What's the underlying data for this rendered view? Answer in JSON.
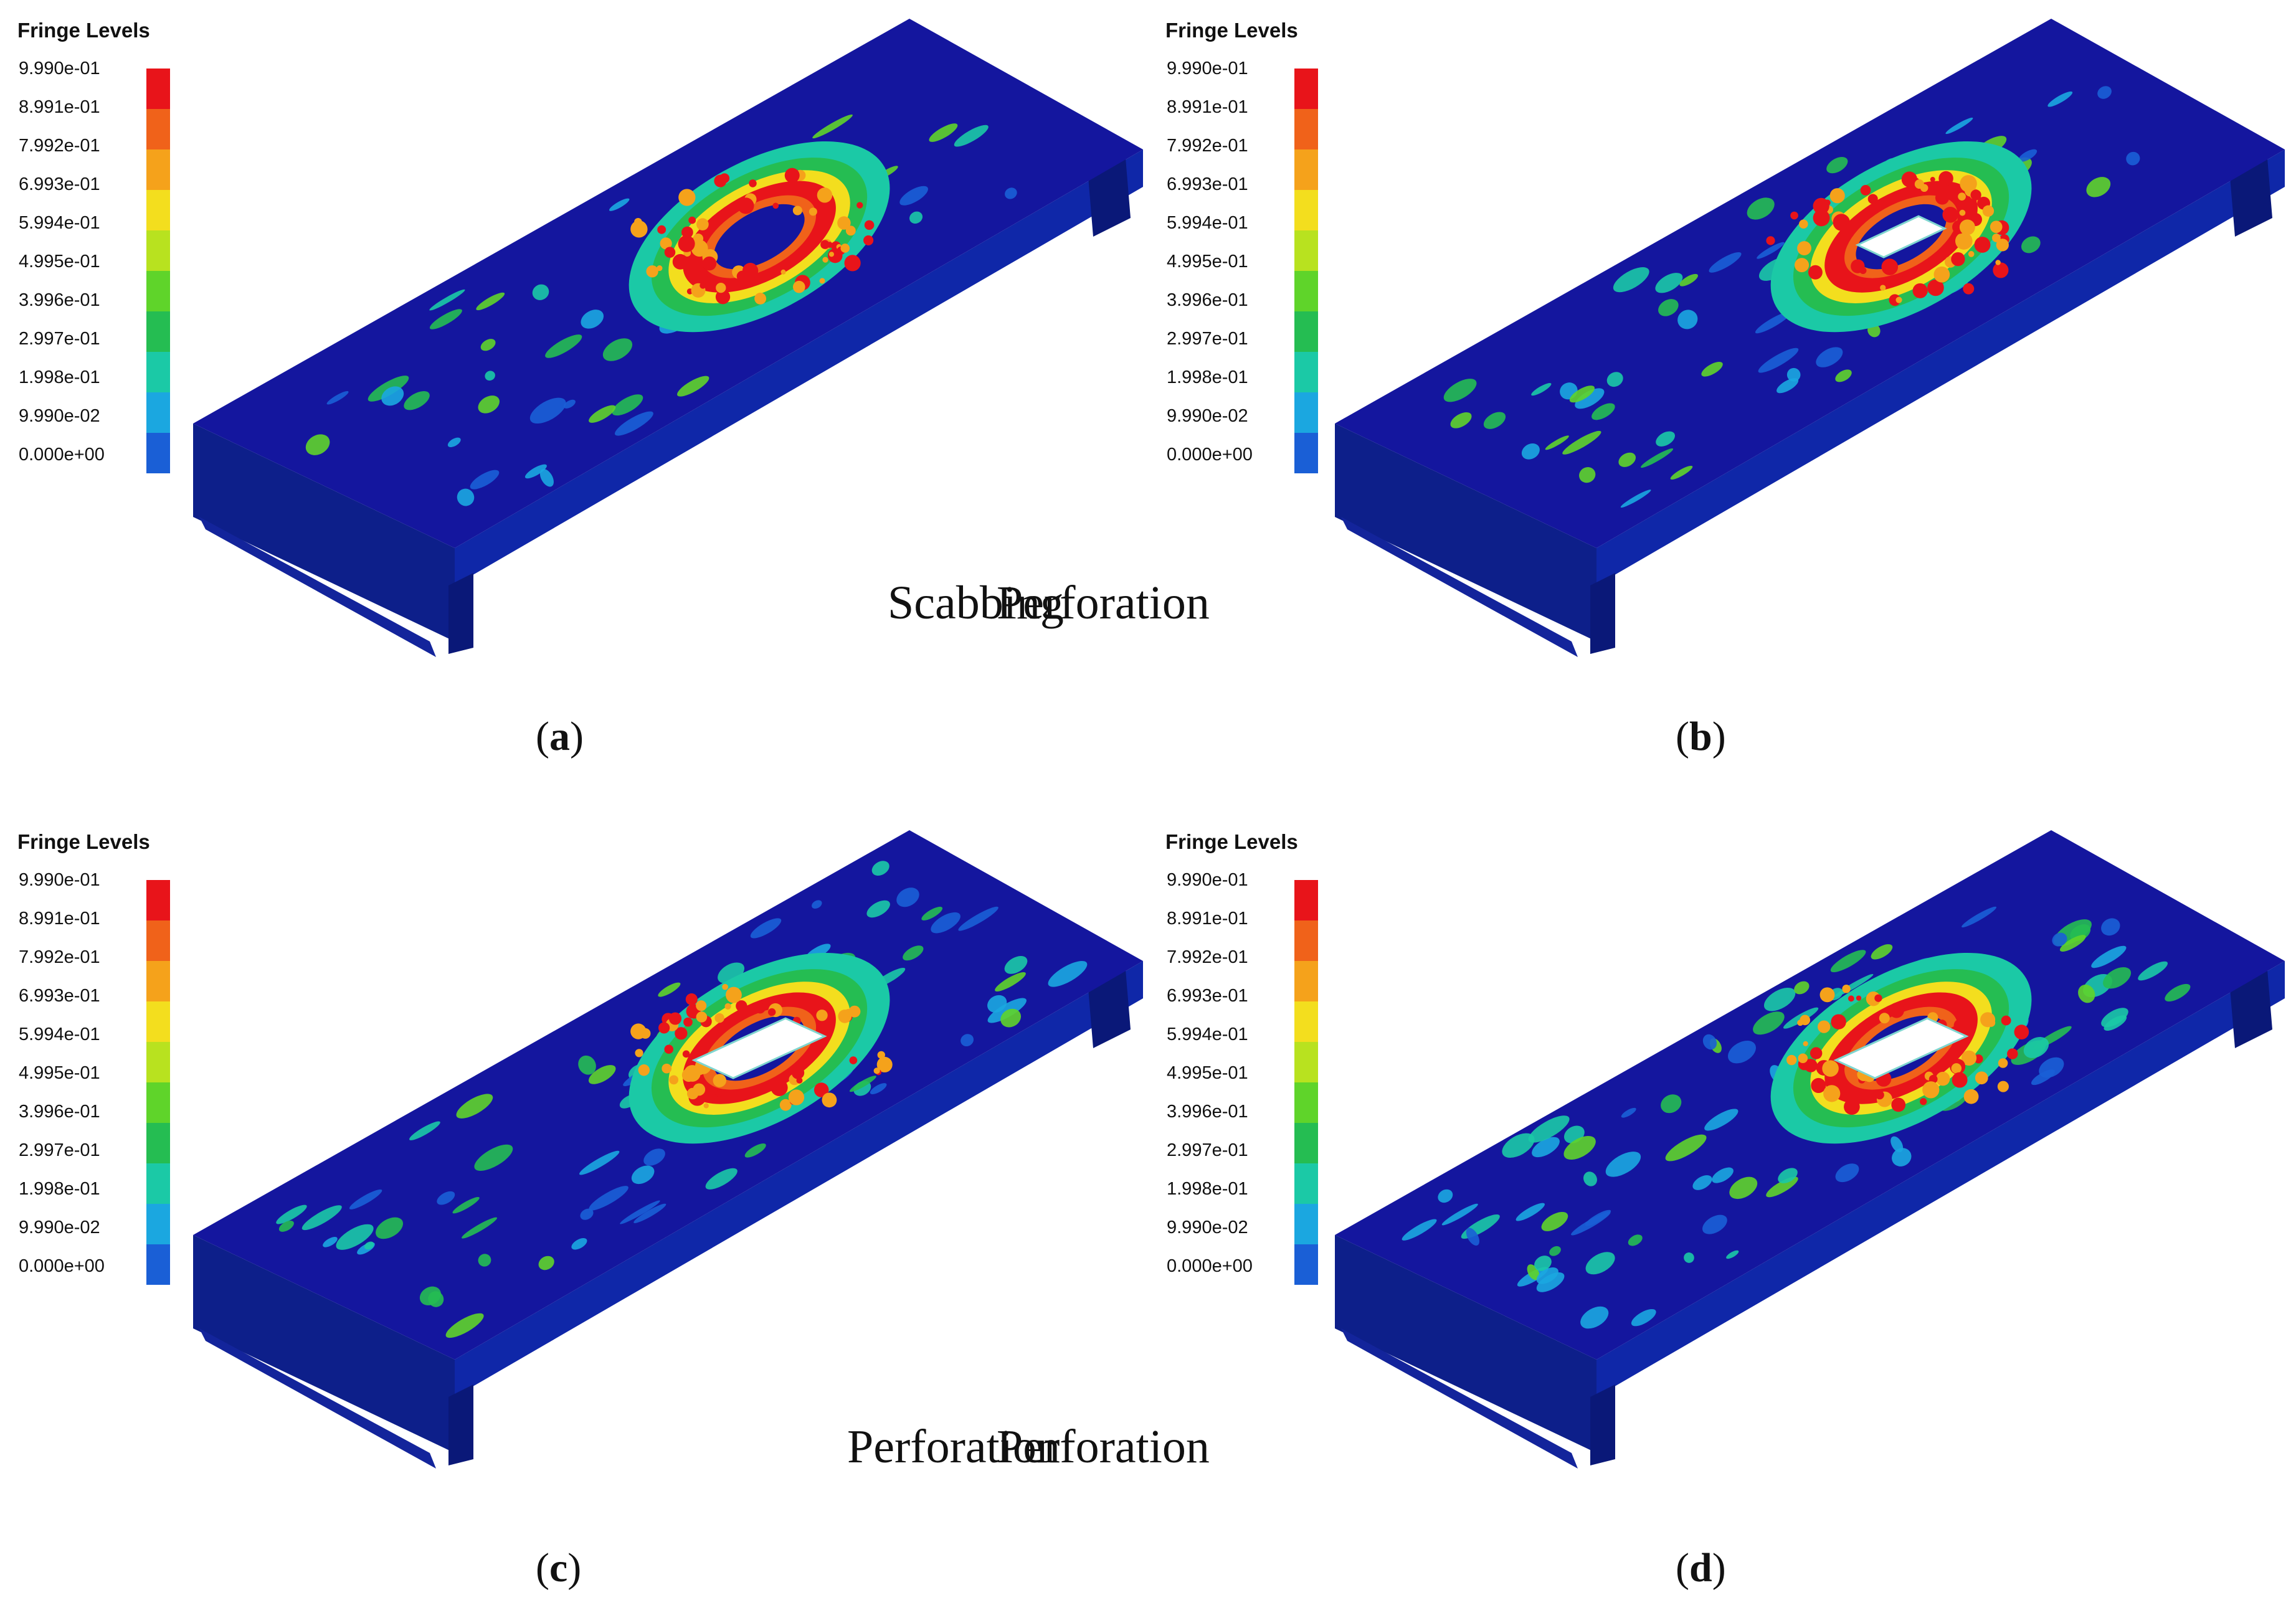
{
  "legend": {
    "title": "Fringe Levels",
    "levels": [
      "9.990e-01",
      "8.991e-01",
      "7.992e-01",
      "6.993e-01",
      "5.994e-01",
      "4.995e-01",
      "3.996e-01",
      "2.997e-01",
      "1.998e-01",
      "9.990e-02",
      "0.000e+00"
    ],
    "colors": [
      "#e8141a",
      "#f0621a",
      "#f5a21b",
      "#f3de1e",
      "#b8e21f",
      "#5fd42a",
      "#25bd52",
      "#1bc9a6",
      "#1ba7e0",
      "#1a5fd6",
      "#1413d6"
    ]
  },
  "panels": [
    {
      "id": "a",
      "caption": "a",
      "mode": "Scabbing"
    },
    {
      "id": "b",
      "caption": "b",
      "mode": "Perforation"
    },
    {
      "id": "c",
      "caption": "c",
      "mode": "Perforation"
    },
    {
      "id": "d",
      "caption": "d",
      "mode": "Perforation"
    }
  ]
}
